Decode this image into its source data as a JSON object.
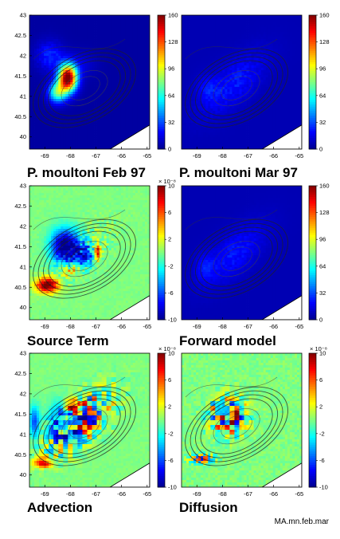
{
  "footnote": "MA.mn.feb.mar",
  "colormaps": {
    "jet": [
      "#00008f",
      "#0000ff",
      "#0080ff",
      "#00ffff",
      "#80ff80",
      "#ffff00",
      "#ff8000",
      "#ff0000",
      "#800000"
    ]
  },
  "chart_data": [
    {
      "type": "heatmap",
      "title": "P. moultoni  Feb 97",
      "x_ticks": [
        -69,
        -68,
        -67,
        -66,
        -65
      ],
      "y_ticks": [
        40,
        40.5,
        41,
        41.5,
        42,
        42.5,
        43
      ],
      "xlim": [
        -69.6,
        -64.9
      ],
      "ylim": [
        39.7,
        43
      ],
      "colorbar": {
        "ticks": [
          0,
          32,
          64,
          96,
          128,
          160
        ],
        "multiplier": ""
      },
      "field": "feb"
    },
    {
      "type": "heatmap",
      "title": "P. moultoni  Mar 97",
      "x_ticks": [
        -69,
        -68,
        -67,
        -66,
        -65
      ],
      "y_ticks": [],
      "xlim": [
        -69.6,
        -64.9
      ],
      "ylim": [
        39.7,
        43
      ],
      "colorbar": {
        "ticks": [
          0,
          32,
          64,
          96,
          128,
          160
        ],
        "multiplier": ""
      },
      "field": "mar"
    },
    {
      "type": "heatmap",
      "title": "Source Term",
      "x_ticks": [
        -69,
        -68,
        -67,
        -66,
        -65
      ],
      "y_ticks": [
        40,
        40.5,
        41,
        41.5,
        42,
        42.5,
        43
      ],
      "xlim": [
        -69.6,
        -64.9
      ],
      "ylim": [
        39.7,
        43
      ],
      "colorbar": {
        "ticks": [
          -10,
          -6,
          -2,
          2,
          6,
          10
        ],
        "multiplier": "× 10⁻⁸"
      },
      "field": "source"
    },
    {
      "type": "heatmap",
      "title": "Forward model",
      "x_ticks": [
        -69,
        -68,
        -67,
        -66,
        -65
      ],
      "y_ticks": [],
      "xlim": [
        -69.6,
        -64.9
      ],
      "ylim": [
        39.7,
        43
      ],
      "colorbar": {
        "ticks": [
          0,
          32,
          64,
          96,
          128,
          160
        ],
        "multiplier": ""
      },
      "field": "forward"
    },
    {
      "type": "heatmap",
      "title": "Advection",
      "x_ticks": [
        -69,
        -68,
        -67,
        -66,
        -65
      ],
      "y_ticks": [
        40,
        40.5,
        41,
        41.5,
        42,
        42.5,
        43
      ],
      "xlim": [
        -69.6,
        -64.9
      ],
      "ylim": [
        39.7,
        43
      ],
      "colorbar": {
        "ticks": [
          -10,
          -6,
          -2,
          2,
          6,
          10
        ],
        "multiplier": "× 10⁻⁸"
      },
      "field": "advection"
    },
    {
      "type": "heatmap",
      "title": "Diffusion",
      "x_ticks": [
        -69,
        -68,
        -67,
        -66,
        -65
      ],
      "y_ticks": [],
      "xlim": [
        -69.6,
        -64.9
      ],
      "ylim": [
        39.7,
        43
      ],
      "colorbar": {
        "ticks": [
          -10,
          -6,
          -2,
          2,
          6,
          10
        ],
        "multiplier": "× 10⁻⁸"
      },
      "field": "diffusion"
    }
  ]
}
